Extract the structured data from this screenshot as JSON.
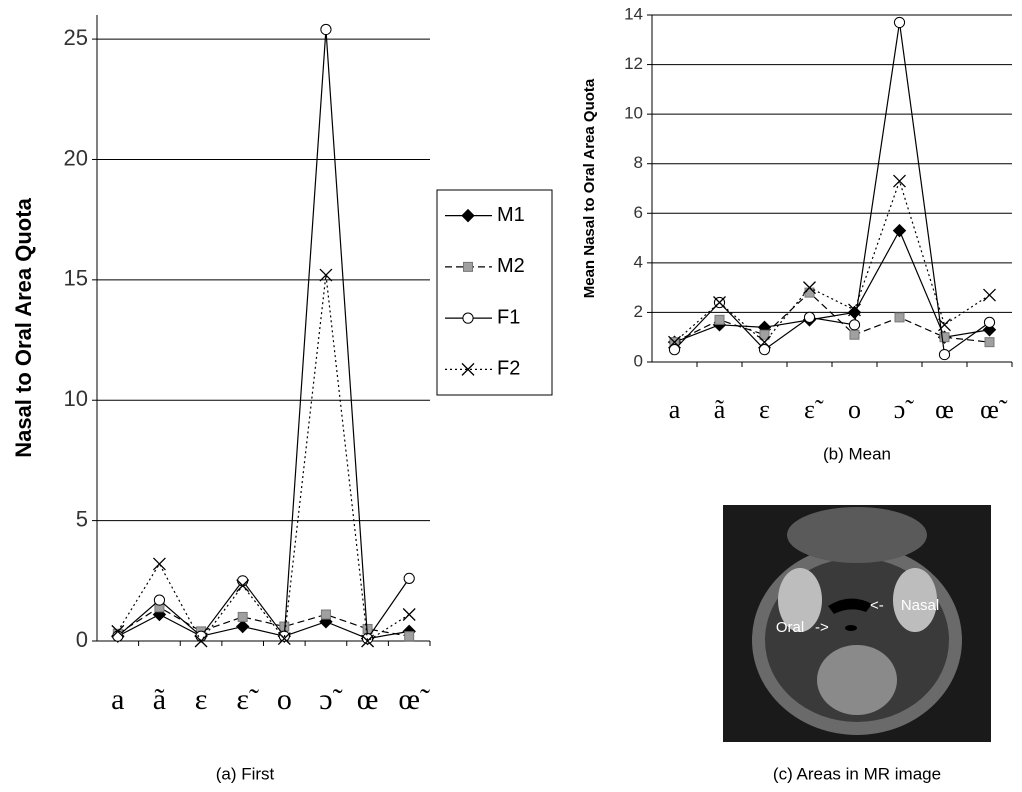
{
  "chart_data": [
    {
      "type": "line",
      "caption": "(a) First",
      "y_label": "Nasal to Oral Area Quota",
      "categories": [
        "a",
        "ã",
        "ɛ",
        "ɛ̃",
        "o",
        "ɔ̃",
        "œ",
        "œ̃"
      ],
      "ylim": [
        0,
        26
      ],
      "yticks": [
        0,
        5,
        10,
        15,
        20,
        25
      ],
      "grid": true,
      "legend": "right",
      "series": [
        {
          "name": "M1",
          "color": "#000000",
          "marker": "diamond",
          "line_style": "solid",
          "values": [
            0.2,
            1.1,
            0.2,
            0.6,
            0.2,
            0.8,
            0.1,
            0.4
          ]
        },
        {
          "name": "M2",
          "color": "#a0a0a0",
          "marker": "square",
          "line_style": "dashed",
          "values": [
            0.3,
            1.4,
            0.4,
            1.0,
            0.6,
            1.1,
            0.5,
            0.2
          ]
        },
        {
          "name": "F1",
          "color": "#ffffff",
          "marker": "circle",
          "line_style": "solid",
          "values": [
            0.2,
            1.7,
            0.2,
            2.5,
            0.2,
            25.4,
            0.1,
            2.6
          ]
        },
        {
          "name": "F2",
          "color": "#000000",
          "marker": "x",
          "line_style": "dotted",
          "values": [
            0.4,
            3.2,
            0.0,
            2.3,
            0.1,
            15.2,
            0.0,
            1.1
          ]
        }
      ]
    },
    {
      "type": "line",
      "caption": "(b) Mean",
      "y_label": "Mean Nasal to Oral Area Quota",
      "categories": [
        "a",
        "ã",
        "ɛ",
        "ɛ̃",
        "o",
        "ɔ̃",
        "œ",
        "œ̃"
      ],
      "ylim": [
        0,
        14
      ],
      "yticks": [
        0,
        2,
        4,
        6,
        8,
        10,
        12,
        14
      ],
      "grid": true,
      "series": [
        {
          "color": "#000000",
          "marker": "diamond",
          "line_style": "solid",
          "values": [
            0.8,
            1.5,
            1.4,
            1.7,
            2.0,
            5.3,
            1.0,
            1.3
          ]
        },
        {
          "color": "#a0a0a0",
          "marker": "square",
          "line_style": "dashed",
          "values": [
            0.8,
            1.7,
            1.1,
            2.8,
            1.1,
            1.8,
            1.0,
            0.8
          ]
        },
        {
          "color": "#ffffff",
          "marker": "circle",
          "line_style": "solid",
          "values": [
            0.5,
            2.4,
            0.5,
            1.8,
            1.5,
            13.7,
            0.3,
            1.6
          ]
        },
        {
          "color": "#000000",
          "marker": "x",
          "line_style": "dotted",
          "values": [
            0.8,
            2.4,
            0.8,
            3.0,
            2.1,
            7.3,
            1.5,
            2.7
          ]
        }
      ]
    }
  ],
  "figure_c": {
    "caption": "(c) Areas in MR image",
    "labels": [
      "Oral",
      "Nasal"
    ]
  }
}
